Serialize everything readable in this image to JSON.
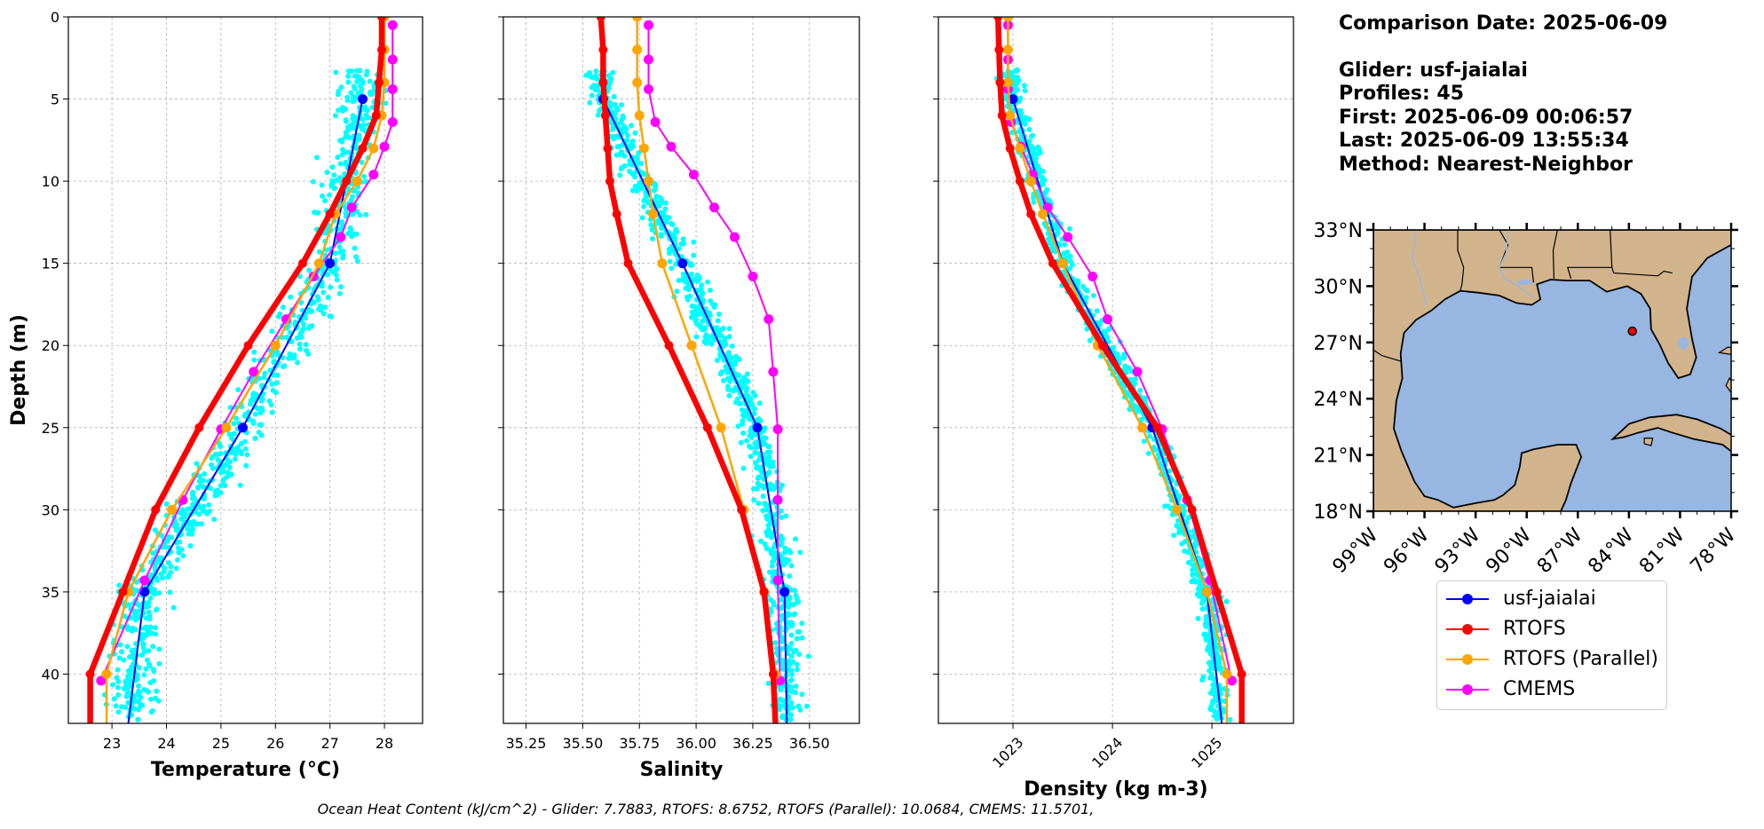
{
  "info": {
    "comparison_date": "Comparison Date: 2025-06-09",
    "glider": "Glider: usf-jaialai",
    "profiles": "Profiles: 45",
    "first": "First: 2025-06-09 00:06:57",
    "last": "Last: 2025-06-09 13:55:34",
    "method": "Method: Nearest-Neighbor"
  },
  "footer": "Ocean Heat Content (kJ/cm^2) - Glider: 7.7883,  RTOFS: 8.6752,  RTOFS (Parallel): 10.0684,  CMEMS: 11.5701,",
  "legend": [
    {
      "label": "usf-jaialai",
      "color": "#0000ff"
    },
    {
      "label": "RTOFS",
      "color": "#ff0000"
    },
    {
      "label": "RTOFS (Parallel)",
      "color": "#ffa500"
    },
    {
      "label": "CMEMS",
      "color": "#ff00ff"
    }
  ],
  "colors": {
    "glider_scatter": "#00ffff",
    "glider": "#0000ff",
    "rtofs": "#ff0000",
    "rtofs_parallel": "#ffa500",
    "cmems": "#ff00ff",
    "ocean": "#97b6e1",
    "land": "#d2b48c"
  },
  "chart_data": [
    {
      "type": "line",
      "xlabel": "Temperature (°C)",
      "ylabel": "Depth (m)",
      "xlim": [
        22.2,
        28.7
      ],
      "ylim": [
        43,
        0
      ],
      "xticks": [
        23,
        24,
        25,
        26,
        27,
        28
      ],
      "yticks": [
        0,
        5,
        10,
        15,
        20,
        25,
        30,
        35,
        40
      ],
      "grid": true,
      "series": [
        {
          "name": "usf-jaialai",
          "color": "#0000ff",
          "points": [
            [
              27.6,
              5
            ],
            [
              27.0,
              15
            ],
            [
              25.4,
              25
            ],
            [
              23.6,
              35
            ],
            [
              23.3,
              43
            ]
          ]
        },
        {
          "name": "RTOFS",
          "color": "#ff0000",
          "points": [
            [
              27.95,
              0
            ],
            [
              27.95,
              2
            ],
            [
              27.9,
              4
            ],
            [
              27.85,
              6
            ],
            [
              27.6,
              8
            ],
            [
              27.3,
              10
            ],
            [
              27.0,
              12
            ],
            [
              26.5,
              15
            ],
            [
              25.5,
              20
            ],
            [
              24.6,
              25
            ],
            [
              23.8,
              30
            ],
            [
              23.2,
              35
            ],
            [
              22.6,
              40
            ],
            [
              22.6,
              43
            ]
          ]
        },
        {
          "name": "RTOFS (Parallel)",
          "color": "#ffa500",
          "points": [
            [
              28.0,
              0
            ],
            [
              28.0,
              2
            ],
            [
              28.0,
              4
            ],
            [
              27.95,
              6
            ],
            [
              27.8,
              8
            ],
            [
              27.5,
              10
            ],
            [
              27.1,
              12
            ],
            [
              26.8,
              15
            ],
            [
              26.0,
              20
            ],
            [
              25.1,
              25
            ],
            [
              24.1,
              30
            ],
            [
              23.3,
              35
            ],
            [
              22.9,
              40
            ],
            [
              22.9,
              43
            ]
          ]
        },
        {
          "name": "CMEMS",
          "color": "#ff00ff",
          "points": [
            [
              28.15,
              0.5
            ],
            [
              28.15,
              2.6
            ],
            [
              28.15,
              4.4
            ],
            [
              28.15,
              6.4
            ],
            [
              28.0,
              7.9
            ],
            [
              27.8,
              9.6
            ],
            [
              27.4,
              11.6
            ],
            [
              27.2,
              13.4
            ],
            [
              26.7,
              15.8
            ],
            [
              26.2,
              18.4
            ],
            [
              25.6,
              21.6
            ],
            [
              25.0,
              25.1
            ],
            [
              24.3,
              29.4
            ],
            [
              23.6,
              34.3
            ],
            [
              22.8,
              40.4
            ]
          ]
        }
      ]
    },
    {
      "type": "line",
      "xlabel": "Salinity",
      "xlim": [
        35.15,
        36.72
      ],
      "ylim": [
        43,
        0
      ],
      "xticks": [
        35.25,
        35.5,
        35.75,
        36.0,
        36.25,
        36.5
      ],
      "xticklabels": [
        "35.25",
        "35.50",
        "35.75",
        "36.00",
        "36.25",
        "36.50"
      ],
      "yticks": [
        0,
        5,
        10,
        15,
        20,
        25,
        30,
        35,
        40
      ],
      "grid": true,
      "series": [
        {
          "name": "usf-jaialai",
          "color": "#0000ff",
          "points": [
            [
              35.59,
              5
            ],
            [
              35.94,
              15
            ],
            [
              36.27,
              25
            ],
            [
              36.39,
              35
            ],
            [
              36.4,
              43
            ]
          ]
        },
        {
          "name": "RTOFS",
          "color": "#ff0000",
          "points": [
            [
              35.58,
              0
            ],
            [
              35.59,
              2
            ],
            [
              35.59,
              4
            ],
            [
              35.6,
              6
            ],
            [
              35.61,
              8
            ],
            [
              35.62,
              10
            ],
            [
              35.65,
              12
            ],
            [
              35.7,
              15
            ],
            [
              35.88,
              20
            ],
            [
              36.05,
              25
            ],
            [
              36.2,
              30
            ],
            [
              36.3,
              35
            ],
            [
              36.34,
              40
            ],
            [
              36.35,
              43
            ]
          ]
        },
        {
          "name": "RTOFS (Parallel)",
          "color": "#ffa500",
          "points": [
            [
              35.74,
              0
            ],
            [
              35.74,
              2
            ],
            [
              35.74,
              4
            ],
            [
              35.75,
              6
            ],
            [
              35.77,
              8
            ],
            [
              35.79,
              10
            ],
            [
              35.81,
              12
            ],
            [
              35.85,
              15
            ],
            [
              35.98,
              20
            ],
            [
              36.11,
              25
            ],
            [
              36.21,
              30
            ],
            [
              36.3,
              35
            ],
            [
              36.35,
              40
            ],
            [
              36.35,
              43
            ]
          ]
        },
        {
          "name": "CMEMS",
          "color": "#ff00ff",
          "points": [
            [
              35.79,
              0.5
            ],
            [
              35.79,
              2.6
            ],
            [
              35.79,
              4.4
            ],
            [
              35.82,
              6.4
            ],
            [
              35.89,
              7.9
            ],
            [
              35.99,
              9.6
            ],
            [
              36.08,
              11.6
            ],
            [
              36.17,
              13.4
            ],
            [
              36.25,
              15.8
            ],
            [
              36.32,
              18.4
            ],
            [
              36.34,
              21.6
            ],
            [
              36.36,
              25.1
            ],
            [
              36.36,
              29.4
            ],
            [
              36.36,
              34.3
            ],
            [
              36.37,
              40.4
            ]
          ]
        }
      ]
    },
    {
      "type": "line",
      "xlabel": "Density (kg m-3)",
      "xlim": [
        1022.25,
        1025.82
      ],
      "ylim": [
        43,
        0
      ],
      "xticks": [
        1023,
        1024,
        1025
      ],
      "yticks": [
        0,
        5,
        10,
        15,
        20,
        25,
        30,
        35,
        40
      ],
      "grid": true,
      "series": [
        {
          "name": "usf-jaialai",
          "color": "#0000ff",
          "points": [
            [
              1023.0,
              5
            ],
            [
              1023.5,
              15
            ],
            [
              1024.4,
              25
            ],
            [
              1024.95,
              35
            ],
            [
              1025.1,
              43
            ]
          ]
        },
        {
          "name": "RTOFS",
          "color": "#ff0000",
          "points": [
            [
              1022.85,
              0
            ],
            [
              1022.86,
              2
            ],
            [
              1022.87,
              4
            ],
            [
              1022.89,
              6
            ],
            [
              1022.97,
              8
            ],
            [
              1023.07,
              10
            ],
            [
              1023.18,
              12
            ],
            [
              1023.4,
              15
            ],
            [
              1023.9,
              20
            ],
            [
              1024.45,
              25
            ],
            [
              1024.8,
              30
            ],
            [
              1025.05,
              35
            ],
            [
              1025.3,
              40
            ],
            [
              1025.3,
              43
            ]
          ]
        },
        {
          "name": "RTOFS (Parallel)",
          "color": "#ffa500",
          "points": [
            [
              1022.95,
              0
            ],
            [
              1022.95,
              2
            ],
            [
              1022.95,
              4
            ],
            [
              1022.97,
              6
            ],
            [
              1023.07,
              8
            ],
            [
              1023.18,
              10
            ],
            [
              1023.3,
              12
            ],
            [
              1023.5,
              15
            ],
            [
              1023.85,
              20
            ],
            [
              1024.3,
              25
            ],
            [
              1024.65,
              30
            ],
            [
              1024.95,
              35
            ],
            [
              1025.15,
              40
            ],
            [
              1025.15,
              43
            ]
          ]
        },
        {
          "name": "CMEMS",
          "color": "#ff00ff",
          "points": [
            [
              1022.95,
              0.5
            ],
            [
              1022.95,
              2.6
            ],
            [
              1022.95,
              4.4
            ],
            [
              1022.98,
              6.4
            ],
            [
              1023.08,
              7.9
            ],
            [
              1023.2,
              9.6
            ],
            [
              1023.35,
              11.6
            ],
            [
              1023.55,
              13.4
            ],
            [
              1023.8,
              15.8
            ],
            [
              1023.95,
              18.4
            ],
            [
              1024.25,
              21.6
            ],
            [
              1024.5,
              25.1
            ],
            [
              1024.75,
              29.4
            ],
            [
              1024.98,
              34.3
            ],
            [
              1025.2,
              40.4
            ]
          ]
        }
      ]
    },
    {
      "type": "map",
      "lon_range": [
        -99,
        -78
      ],
      "lat_range": [
        18,
        33
      ],
      "xticks": [
        "99°W",
        "96°W",
        "93°W",
        "90°W",
        "87°W",
        "84°W",
        "81°W",
        "78°W"
      ],
      "yticks": [
        "33°N",
        "30°N",
        "27°N",
        "24°N",
        "21°N",
        "18°N"
      ],
      "marker": {
        "lon": -83.8,
        "lat": 27.6,
        "color": "#ff0000"
      }
    }
  ]
}
